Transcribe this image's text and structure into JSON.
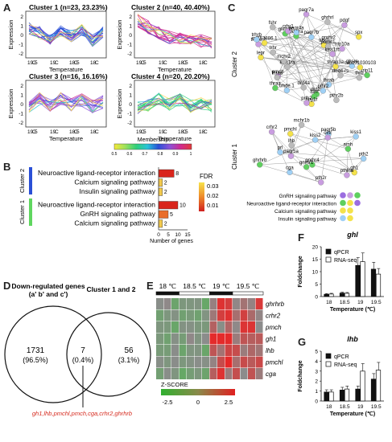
{
  "panels": {
    "A": "A",
    "B": "B",
    "C": "C",
    "D": "D",
    "E": "E",
    "F": "F",
    "G": "G"
  },
  "panelA": {
    "clusters": [
      {
        "title": "Cluster 1 (n=23, 23.23%)",
        "color": "#2a4fd6"
      },
      {
        "title": "Cluster 2 (n=40, 40.40%)",
        "color": "#d12a8f"
      },
      {
        "title": "Cluster 3 (n=16, 16.16%)",
        "color": "#8a52d9"
      },
      {
        "title": "Cluster 4 (n=20, 20.20%)",
        "color": "#2fcf7a"
      }
    ],
    "ylabel": "Expression",
    "xlabel": "Temperature",
    "xticks": [
      "19.5",
      "C",
      "19",
      "C",
      "18.5",
      "C",
      "18",
      "C"
    ],
    "yticks": [
      "2",
      "1",
      "0",
      "-1",
      "-2"
    ],
    "membership_label": "Membership",
    "membership_ticks": [
      "0.5",
      "0.6",
      "0.7",
      "0.8",
      "0.9",
      "1"
    ]
  },
  "panelB": {
    "chart_data": {
      "type": "bar",
      "categories": [
        "Neuroactive ligand-receptor interaction",
        "Calcium signaling pathway",
        "Insulin signaling pathway",
        "Neuroactive ligand-receptor interaction",
        "GnRH signaling pathway",
        "Calcium signaling pathway"
      ],
      "values": [
        8,
        2,
        2,
        10,
        5,
        2
      ],
      "groups": [
        "Cluster 2",
        "Cluster 2",
        "Cluster 2",
        "Cluster 1",
        "Cluster 1",
        "Cluster 1"
      ],
      "fdr_colors": [
        "#d9251c",
        "#f2c94c",
        "#f2c94c",
        "#d9251c",
        "#e96d2a",
        "#f2c94c"
      ],
      "xlabel": "Number of genes",
      "xticks": [
        "0",
        "5",
        "10",
        "15"
      ],
      "legend_title": "FDR",
      "legend_ticks": [
        "0.03",
        "0.02",
        "0.01"
      ]
    },
    "cluster_labels": [
      "Cluster 2",
      "Cluster 1"
    ]
  },
  "panelC": {
    "cluster_labels": [
      "Cluster 2",
      "Cluster 1"
    ],
    "legend": [
      {
        "label": "GnRH signaling pathway"
      },
      {
        "label": "Neuroactive ligand-receptor interaction"
      },
      {
        "label": "Calcium signaling pathway"
      },
      {
        "label": "Insulin signaling pathway"
      }
    ],
    "nodes_c2": [
      "trip11",
      "thrap3a",
      "thrb",
      "dnd4-rs",
      "thrab",
      "pthr2b",
      "drd2a",
      "pthr2",
      "fshr",
      "npy1r",
      "prlh2",
      "drd4a",
      "trhde.1",
      "thraa",
      "pmch",
      "kiss1ra",
      "thraa",
      "mchr2",
      "lepr",
      "trhr",
      "trhde.2",
      "crf753886.1",
      "trhrb",
      "fshr",
      "ghrbrb",
      "pdgfra",
      "crhr1",
      "paqr4a",
      "paqr7a",
      "paqr7b",
      "ghrhrl",
      "trhr2",
      "gnrhr2",
      "pdgf",
      "pomc1",
      "spx",
      "kiss1rb",
      "trip10a",
      "ghsra",
      "cabz01030103"
    ],
    "nodes_c1": [
      "pth2",
      "gh1",
      "pthlha",
      "pth2r",
      "gnrhr4",
      "gnrhr1",
      "cga",
      "ghrhrb",
      "paqr5a",
      "prl",
      "lhb",
      "crhr2",
      "pmchl",
      "mchr1b",
      "kiss2",
      "paqr5b",
      "oxtr",
      "kiss1",
      "amh"
    ]
  },
  "panelD": {
    "left_title": "Down-regulated genes",
    "left_sub": "(a' b' and c')",
    "right_title": "Cluster 1 and 2",
    "left_only": "1731",
    "left_only_pct": "(96.5%)",
    "overlap": "7",
    "overlap_pct": "(0.4%)",
    "right_only": "56",
    "right_only_pct": "(3.1%)",
    "genes": "gh1,lhb,pmchl,pmch,cga,crhr2,ghrhrb"
  },
  "panelE": {
    "groups": [
      "18 ℃",
      "18.5 ℃",
      "19 ℃",
      "19.5 ℃"
    ],
    "rows": [
      "ghrhrb",
      "crhr2",
      "pmch",
      "gh1",
      "lhb",
      "pmchl",
      "cga"
    ],
    "zscore_label": "Z-SCORE",
    "zscore_ticks": [
      "-2.5",
      "0",
      "2.5"
    ]
  },
  "panelF": {
    "chart_data": {
      "type": "bar",
      "title": "ghl",
      "categories": [
        "18",
        "18.5",
        "19",
        "19.5"
      ],
      "series": [
        {
          "name": "qPCR",
          "values": [
            0.9,
            1.4,
            12.5,
            11.0
          ]
        },
        {
          "name": "RNA-seq",
          "values": [
            1.0,
            1.3,
            14.0,
            9.0
          ]
        }
      ],
      "ylabel": "Foldchange",
      "xlabel": "Temperature (℃)",
      "ylim": [
        0,
        20
      ],
      "yticks": [
        "0",
        "5",
        "10",
        "15",
        "20"
      ]
    }
  },
  "panelG": {
    "chart_data": {
      "type": "bar",
      "title": "lhb",
      "categories": [
        "18",
        "18.5",
        "19",
        "19.5"
      ],
      "series": [
        {
          "name": "qPCR",
          "values": [
            0.9,
            1.1,
            1.2,
            2.2
          ]
        },
        {
          "name": "RNA-seq",
          "values": [
            0.9,
            1.2,
            3.0,
            3.1
          ]
        }
      ],
      "ylabel": "Foldchange",
      "xlabel": "Temperature (℃)",
      "ylim": [
        0,
        5
      ],
      "yticks": [
        "0",
        "1",
        "2",
        "3",
        "4",
        "5"
      ]
    }
  }
}
